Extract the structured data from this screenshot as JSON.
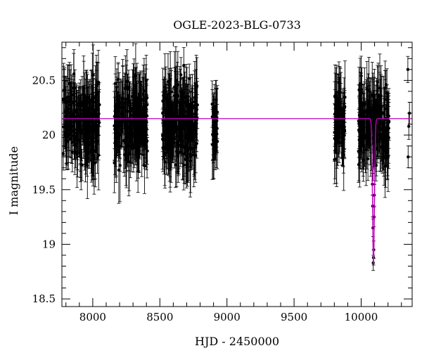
{
  "chart_data": {
    "type": "scatter",
    "title": "OGLE-2023-BLG-0733",
    "xlabel": "HJD - 2450000",
    "ylabel": "I magnitude",
    "xlim": [
      7770,
      10380
    ],
    "ylim": [
      20.85,
      18.43
    ],
    "y_inverted": true,
    "x_ticks": [
      8000,
      8500,
      9000,
      9500,
      10000
    ],
    "y_ticks": [
      18.5,
      19,
      19.5,
      20,
      20.5
    ],
    "x_tick_labels": [
      "8000",
      "8500",
      "9000",
      "9500",
      "10000"
    ],
    "y_tick_labels": [
      "18.5",
      "19",
      "19.5",
      "20",
      "20.5"
    ],
    "grid": false,
    "data_color": "#000000",
    "model_color": "#c000c0",
    "baseline_magnitude": 20.15,
    "series": [
      {
        "kind": "observations",
        "seasons": [
          {
            "x_start": 7780,
            "x_end": 8050,
            "mag_center": 20.12,
            "mag_spread": 0.32
          },
          {
            "x_start": 8160,
            "x_end": 8410,
            "mag_center": 20.12,
            "mag_spread": 0.32
          },
          {
            "x_start": 8520,
            "x_end": 8780,
            "mag_center": 20.12,
            "mag_spread": 0.32
          },
          {
            "x_start": 8890,
            "x_end": 8930,
            "mag_center": 20.1,
            "mag_spread": 0.2
          },
          {
            "x_start": 9800,
            "x_end": 9880,
            "mag_center": 20.1,
            "mag_spread": 0.3
          },
          {
            "x_start": 9980,
            "x_end": 10210,
            "mag_center": 20.12,
            "mag_spread": 0.3
          }
        ],
        "event_points": [
          {
            "x": 10090,
            "y": 18.83,
            "err": 0.07
          },
          {
            "x": 10092,
            "y": 18.88,
            "err": 0.07
          },
          {
            "x": 10094,
            "y": 18.95,
            "err": 0.08
          },
          {
            "x": 10088,
            "y": 19.15,
            "err": 0.08
          },
          {
            "x": 10096,
            "y": 19.25,
            "err": 0.09
          },
          {
            "x": 10086,
            "y": 19.35,
            "err": 0.1
          },
          {
            "x": 10098,
            "y": 19.45,
            "err": 0.1
          },
          {
            "x": 10084,
            "y": 19.55,
            "err": 0.1
          }
        ],
        "isolated_points": [
          {
            "x": 10350,
            "y": 19.8,
            "err": 0.1
          },
          {
            "x": 10355,
            "y": 20.08,
            "err": 0.12
          },
          {
            "x": 10360,
            "y": 20.2,
            "err": 0.1
          },
          {
            "x": 10348,
            "y": 20.6,
            "err": 0.12
          }
        ]
      },
      {
        "kind": "model",
        "peak_x": 10092,
        "peak_magnitude": 18.82,
        "width_days": 10
      }
    ]
  }
}
